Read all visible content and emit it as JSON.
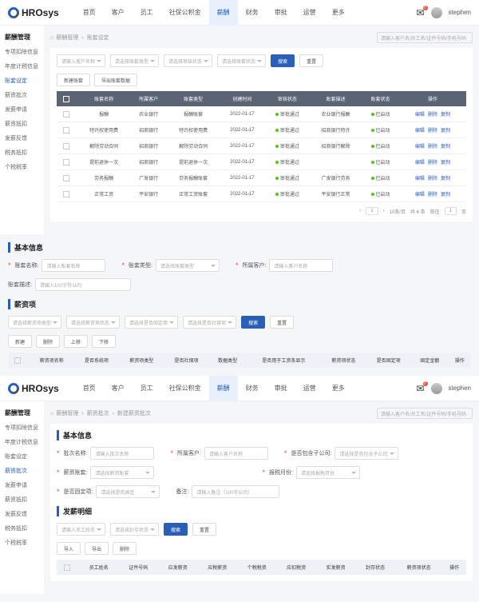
{
  "brand": "HROsys",
  "nav": [
    "首页",
    "客户",
    "员工",
    "社保公积金",
    "薪酬",
    "财务",
    "审批",
    "运营",
    "更多"
  ],
  "nav_active": 4,
  "mail_badge": "0",
  "username": "stephen",
  "screen1": {
    "side_title": "薪酬管理",
    "side": [
      "专项扣除信息",
      "年度计税信息",
      "账套设定",
      "薪资批次",
      "发薪申请",
      "薪资抵扣",
      "发薪反馈",
      "税务抵扣",
      "个税税率"
    ],
    "side_active": 2,
    "crumb": [
      "薪酬管理",
      "账套设定"
    ],
    "search_ph": "请输入客户名/员工名/证件号码/手机号码",
    "filters": [
      "请输入客户名称",
      "请选择账套类型",
      "请选择审核状态",
      "请选择账套状态"
    ],
    "btn_search": "搜索",
    "btn_reset": "重置",
    "btn_new": "新建账套",
    "btn_export": "导出账套数据",
    "cols": [
      "",
      "账套名称",
      "所属客户",
      "账套类型",
      "创建时间",
      "审核状态",
      "账套描述",
      "账套状态",
      "操作"
    ],
    "rows": [
      [
        "",
        "报酬",
        "农业银行",
        "报酬账套",
        "2022-01-17",
        "审批通过",
        "农业银行报酬",
        "已启动"
      ],
      [
        "",
        "特许权使用费",
        "招商银行",
        "特许权使用费",
        "2022-01-17",
        "审批通过",
        "招商银行特许",
        "已启动"
      ],
      [
        "",
        "解除劳动合同",
        "招商银行",
        "解除劳动合同",
        "2022-01-17",
        "审批通过",
        "招商银行解除",
        "已启动"
      ],
      [
        "",
        "提前退休一次",
        "招商银行",
        "提前退休一次",
        "2022-01-17",
        "审批通过",
        "",
        "已启动"
      ],
      [
        "",
        "劳务报酬",
        "广发银行",
        "劳务报酬账套",
        "2022-01-17",
        "审批通过",
        "广发银行劳务",
        "已启动"
      ],
      [
        "",
        "正常工资",
        "平安银行",
        "正常工资账套",
        "2022-01-17",
        "审批通过",
        "平安银行正常",
        "已启动"
      ]
    ],
    "ops": [
      "编辑",
      "删除",
      "复制"
    ],
    "pager": {
      "size": "10条/页",
      "total": "共 6 条",
      "goto": "前往",
      "page": "1",
      "unit": "页"
    }
  },
  "basic": {
    "title": "基本信息",
    "f1_lbl": "账套名称:",
    "f1_ph": "请输入账套名称",
    "f2_lbl": "账套类型:",
    "f2_ph": "请选择账套类型",
    "f3_lbl": "所属客户:",
    "f3_ph": "请输入客户名称",
    "f4_lbl": "账套描述:",
    "f4_ph": "请输入100字符以内"
  },
  "salary": {
    "title": "薪资项",
    "filters": [
      "请选择薪资项类型",
      "请选择薪资项状态",
      "请选择是否固定项",
      "请选择是否社保项"
    ],
    "btn_search": "搜索",
    "btn_reset": "重置",
    "btn_new": "新建",
    "btn_del": "删除",
    "btn_up": "上移",
    "btn_down": "下移",
    "cols": [
      "",
      "薪资项名称",
      "是否系统项",
      "薪资项类型",
      "是否社保项",
      "数据类型",
      "是否用于工资条显示",
      "薪资项状态",
      "是否固定项",
      "固定金额",
      "操作"
    ]
  },
  "screen2": {
    "side_active": 3,
    "crumb": [
      "薪酬管理",
      "薪资批次",
      "新建薪资批次"
    ],
    "basic": {
      "title": "基本信息",
      "f1_lbl": "批次名称:",
      "f1_ph": "请输入批次名称",
      "f2_lbl": "所属客户:",
      "f2_ph": "请输入客户名称",
      "f3_lbl": "是否包含子公司:",
      "f3_ph": "请选择是否包含子公司",
      "f4_lbl": "薪资账套:",
      "f4_ph": "请选择薪资账套",
      "f5_lbl": "报税月份:",
      "f5_ph": "请选择报税月份",
      "f6_lbl": "是否固定项:",
      "f6_ph": "请选择是否固定",
      "f7_lbl": "备注:",
      "f7_ph": "请输入备注（100字以内）"
    },
    "detail": {
      "title": "发薪明细",
      "filters": [
        "请输入员工姓名",
        "请选择封存状态"
      ],
      "btn_search": "搜索",
      "btn_reset": "重置",
      "btn_import": "导入",
      "btn_export": "导出",
      "btn_del": "删除",
      "cols": [
        "",
        "员工姓名",
        "证件号码",
        "应发薪资",
        "应税薪资",
        "个税税资",
        "应扣税资",
        "实发薪资",
        "封存状态",
        "薪资项状态",
        "操作"
      ]
    }
  },
  "colors": {
    "primary": "#2a5fb8",
    "thead": "#5a6475",
    "dot": "#52c41a"
  }
}
